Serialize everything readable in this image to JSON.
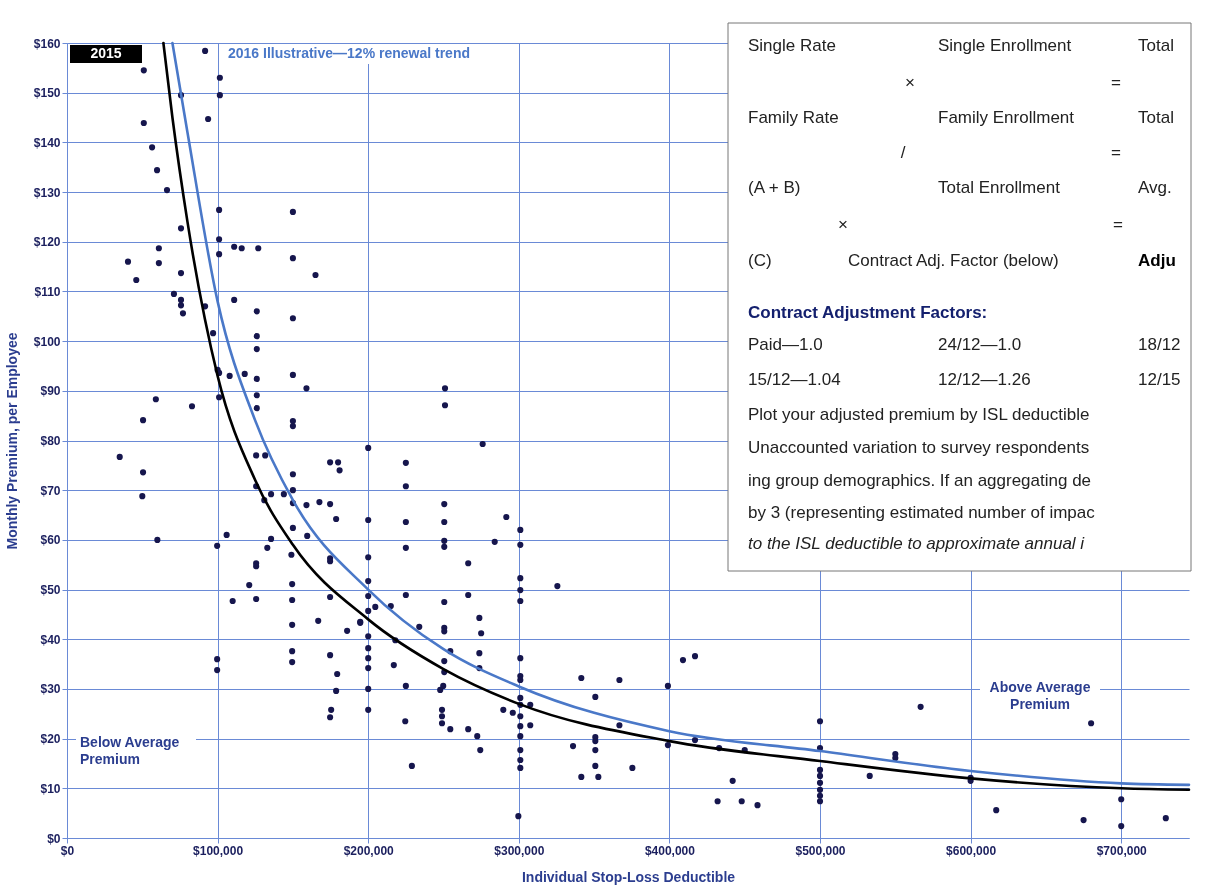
{
  "chart_data": {
    "type": "scatter",
    "xlabel": "Individual Stop-Loss Deductible",
    "ylabel": "Monthly Premium, per Employee",
    "xlim": [
      0,
      745000
    ],
    "ylim": [
      0,
      160
    ],
    "xticks": [
      {
        "value": 0,
        "label": "$0"
      },
      {
        "value": 100000,
        "label": "$100,000"
      },
      {
        "value": 200000,
        "label": "$200,000"
      },
      {
        "value": 300000,
        "label": "$300,000"
      },
      {
        "value": 400000,
        "label": "$400,000"
      },
      {
        "value": 500000,
        "label": "$500,000"
      },
      {
        "value": 600000,
        "label": "$600,000"
      },
      {
        "value": 700000,
        "label": "$700,000"
      }
    ],
    "yticks": [
      {
        "value": 0,
        "label": "$0"
      },
      {
        "value": 10,
        "label": "$10"
      },
      {
        "value": 20,
        "label": "$20"
      },
      {
        "value": 30,
        "label": "$30"
      },
      {
        "value": 40,
        "label": "$40"
      },
      {
        "value": 50,
        "label": "$50"
      },
      {
        "value": 60,
        "label": "$60"
      },
      {
        "value": 70,
        "label": "$70"
      },
      {
        "value": 80,
        "label": "$80"
      },
      {
        "value": 90,
        "label": "$90"
      },
      {
        "value": 100,
        "label": "$100"
      },
      {
        "value": 110,
        "label": "$110"
      },
      {
        "value": 120,
        "label": "$120"
      },
      {
        "value": 130,
        "label": "$130"
      },
      {
        "value": 140,
        "label": "$140"
      },
      {
        "value": 150,
        "label": "$150"
      },
      {
        "value": 160,
        "label": "$160"
      }
    ],
    "grid": true,
    "series": [
      {
        "marker": "circle",
        "color": "#16164d",
        "x": [
          91700,
          51000,
          101500,
          75700,
          101500,
          93700,
          51000,
          56500,
          59800,
          66400,
          101000,
          150000,
          75700,
          101000,
          111000,
          116000,
          127000,
          101000,
          150000,
          40500,
          61000,
          61000,
          75700,
          165000,
          46000,
          71000,
          75700,
          75700,
          111000,
          77000,
          126000,
          150000,
          91700,
          97000,
          126000,
          126000,
          100000,
          101000,
          108000,
          118000,
          126000,
          150000,
          159000,
          101000,
          126000,
          126000,
          59000,
          83000,
          50500,
          150000,
          150000,
          35000,
          50500,
          50000,
          125600,
          131600,
          150000,
          174700,
          180000,
          181000,
          125600,
          135500,
          144000,
          150000,
          131000,
          150000,
          159000,
          167600,
          174700,
          178700,
          150000,
          159500,
          106000,
          135500,
          60000,
          99700,
          133000,
          149000,
          125600,
          125600,
          174700,
          174700,
          121000,
          149500,
          110000,
          125600,
          149500,
          174700,
          166800,
          194700,
          186000,
          149500,
          149500,
          149500,
          174700,
          179400,
          178700,
          175400,
          174700,
          99700,
          99700,
          251000,
          251000,
          276000,
          200000,
          225000,
          225000,
          250500,
          291700,
          200000,
          225000,
          250500,
          301000,
          250500,
          284000,
          301000,
          225000,
          250500,
          200000,
          266400,
          200000,
          301000,
          301000,
          325600,
          266400,
          225000,
          301000,
          250500,
          200000,
          215000,
          204700,
          194700,
          200000,
          273800,
          233900,
          250500,
          250500,
          275000,
          200000,
          218000,
          200000,
          254500,
          273800,
          200000,
          250500,
          217000,
          200000,
          273800,
          301000,
          409000,
          417000,
          250500,
          301000,
          341500,
          366800,
          225000,
          301000,
          249800,
          200000,
          399000,
          247800,
          301000,
          350800,
          307600,
          301000,
          289700,
          200000,
          249000,
          296000,
          301000,
          249000,
          307600,
          224600,
          249000,
          254500,
          266400,
          301000,
          272400,
          366800,
          350800,
          301000,
          350800,
          417000,
          399000,
          336000,
          433000,
          450000,
          350800,
          274400,
          301000,
          301000,
          350800,
          229000,
          375400,
          301000,
          341500,
          352800,
          442000,
          432000,
          448000,
          458500,
          299700,
          566800,
          500000,
          500000,
          550000,
          550000,
          500000,
          500000,
          500000,
          500000,
          500000,
          500000,
          533000,
          600000,
          600000,
          680000,
          700000,
          617000,
          675000,
          729600,
          700000
        ],
        "values": [
          158.4,
          154.5,
          153,
          149.5,
          149.5,
          144.7,
          143.9,
          139,
          134.4,
          130.4,
          126.4,
          126,
          122.7,
          120.5,
          119,
          118.7,
          118.7,
          117.5,
          116.7,
          116,
          118.7,
          115.7,
          113.7,
          113.3,
          112.3,
          109.5,
          108.3,
          107.2,
          108.3,
          105.6,
          106,
          104.6,
          107,
          101.6,
          101,
          98.4,
          94.2,
          93.6,
          93,
          93.4,
          92.4,
          93.2,
          90.5,
          88.7,
          89.1,
          86.5,
          88.3,
          86.9,
          84.1,
          83.9,
          82.9,
          76.7,
          73.6,
          68.8,
          77,
          77,
          73.2,
          75.6,
          75.6,
          74,
          70.8,
          69.2,
          69.2,
          70,
          68,
          67.4,
          67,
          67.6,
          67.2,
          64.2,
          62.4,
          60.8,
          61,
          60.2,
          60,
          58.8,
          58.4,
          57,
          55.3,
          54.7,
          56.3,
          55.7,
          50.9,
          51.1,
          47.7,
          48.1,
          47.9,
          48.5,
          43.7,
          43.3,
          41.7,
          42.9,
          37.6,
          35.4,
          36.8,
          33,
          29.6,
          25.8,
          24.3,
          36,
          33.8,
          90.5,
          87.1,
          79.3,
          78.5,
          75.5,
          70.8,
          67.2,
          64.6,
          64,
          63.6,
          63.6,
          62,
          59.8,
          59.6,
          59,
          58.4,
          58.6,
          56.5,
          55.3,
          51.7,
          52.3,
          49.9,
          50.7,
          48.9,
          48.9,
          47.7,
          47.5,
          48.7,
          46.7,
          46.5,
          43.5,
          45.7,
          44.3,
          42.5,
          42.3,
          41.6,
          41.2,
          40.6,
          39.8,
          38.2,
          37.6,
          37.2,
          36.2,
          35.6,
          34.8,
          34.2,
          34.2,
          36.2,
          35.8,
          36.6,
          33.4,
          32.6,
          32.2,
          31.8,
          30.6,
          31.8,
          30.6,
          30,
          30.6,
          29.8,
          28.2,
          28.4,
          26.8,
          26.8,
          25.8,
          25.8,
          25.8,
          25.2,
          24.5,
          24.5,
          22.7,
          23.5,
          23.1,
          21.9,
          21.9,
          22.5,
          20.5,
          22.7,
          20.3,
          20.5,
          19.5,
          19.7,
          18.7,
          18.5,
          18.1,
          17.7,
          17.7,
          17.7,
          17.7,
          15.7,
          14.5,
          14.5,
          14.1,
          14.1,
          12.3,
          12.3,
          11.5,
          7.4,
          7.4,
          6.6,
          4.4,
          26.4,
          23.5,
          18.1,
          16.9,
          16.1,
          13.7,
          12.5,
          11.1,
          9.7,
          8.5,
          7.4,
          12.5,
          12.1,
          11.5,
          23.1,
          7.8,
          5.6,
          3.6,
          4,
          2.4
        ]
      },
      {
        "type": "line",
        "name": "2015",
        "color": "#000000",
        "x": [
          64000,
          70000,
          80000,
          100000,
          125000,
          150000,
          200000,
          250000,
          300000,
          400000,
          500000,
          600000,
          700000,
          745000
        ],
        "values": [
          160,
          145,
          124,
          93,
          72,
          59,
          44,
          34,
          27,
          19.5,
          15.5,
          12,
          10,
          9.7
        ]
      },
      {
        "type": "line",
        "name": "2016 Illustrative—12% renewal trend",
        "color": "#4a78c8",
        "x": [
          70000,
          80000,
          100000,
          125000,
          150000,
          200000,
          250000,
          300000,
          400000,
          500000,
          600000,
          700000,
          745000
        ],
        "values": [
          160,
          142,
          108,
          84,
          68,
          50,
          38,
          30.5,
          21.5,
          17.5,
          13.5,
          11,
          10.7
        ]
      }
    ],
    "annotations": [
      "Below Average Premium",
      "Above Average Premium",
      "Single Rate",
      "Single Enrollment",
      "Total",
      "×",
      "=",
      "Family Rate",
      "Family Enrollment",
      "Total",
      "/",
      "=",
      "(A + B)",
      "Total Enrollment",
      "Avg.",
      "×",
      "=",
      "(C)",
      "Contract Adj. Factor (below)",
      "Adju",
      "Contract Adjustment Factors:",
      "Paid—1.0",
      "24/12—1.0",
      "18/12",
      "15/12—1.04",
      "12/12—1.26",
      "12/15",
      "Plot your adjusted premium by ISL deductible",
      "Unaccounted variation to survey respondents",
      "ing group demographics. If an aggregating de",
      "by 3 (representing estimated number of impac",
      "to the ISL deductible to approximate annual i"
    ]
  }
}
